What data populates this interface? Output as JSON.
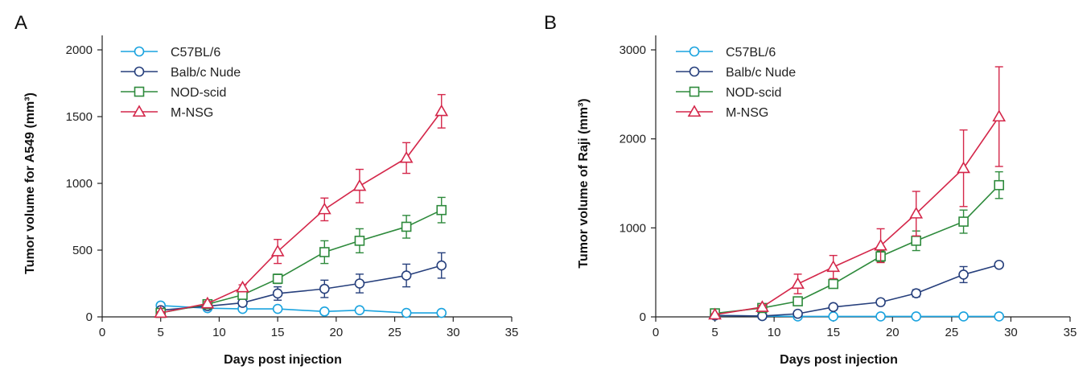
{
  "chart_data": [
    {
      "type": "line",
      "panel_label": "A",
      "xlabel": "Days post injection",
      "ylabel": "Tumor volume for A549 (mm³)",
      "xlim": [
        0,
        35
      ],
      "ylim": [
        0,
        2000
      ],
      "xticks": [
        0,
        5,
        10,
        15,
        20,
        25,
        30,
        35
      ],
      "yticks": [
        0,
        500,
        1000,
        1500,
        2000
      ],
      "grid": false,
      "legend_position": "top-left",
      "series": [
        {
          "name": "C57BL/6",
          "color": "#1aa3df",
          "marker": "circle",
          "x": [
            5,
            9,
            12,
            15,
            19,
            22,
            26,
            29
          ],
          "y": [
            85,
            65,
            60,
            60,
            40,
            50,
            30,
            30
          ],
          "err": [
            8,
            8,
            8,
            8,
            8,
            8,
            8,
            8
          ]
        },
        {
          "name": "Balb/c Nude",
          "color": "#263f7c",
          "marker": "circle",
          "x": [
            5,
            9,
            12,
            15,
            19,
            22,
            26,
            29
          ],
          "y": [
            50,
            80,
            105,
            175,
            210,
            250,
            310,
            385
          ],
          "err": [
            10,
            15,
            25,
            50,
            65,
            70,
            85,
            95
          ]
        },
        {
          "name": "NOD-scid",
          "color": "#2e8a3c",
          "marker": "square",
          "x": [
            5,
            9,
            12,
            15,
            19,
            22,
            26,
            29
          ],
          "y": [
            30,
            95,
            165,
            285,
            485,
            570,
            675,
            800
          ],
          "err": [
            8,
            15,
            25,
            35,
            85,
            90,
            85,
            95
          ]
        },
        {
          "name": "M-NSG",
          "color": "#d4274a",
          "marker": "triangle",
          "x": [
            5,
            9,
            12,
            15,
            19,
            22,
            26,
            29
          ],
          "y": [
            30,
            100,
            220,
            490,
            805,
            980,
            1190,
            1540
          ],
          "err": [
            8,
            15,
            20,
            90,
            85,
            125,
            115,
            125
          ]
        }
      ]
    },
    {
      "type": "line",
      "panel_label": "B",
      "xlabel": "Days post injection",
      "ylabel": "Tumor volume of Raji (mm³)",
      "xlim": [
        0,
        35
      ],
      "ylim": [
        0,
        3000
      ],
      "xticks": [
        0,
        5,
        10,
        15,
        20,
        25,
        30,
        35
      ],
      "yticks": [
        0,
        1000,
        2000,
        3000
      ],
      "grid": false,
      "legend_position": "top-left",
      "series": [
        {
          "name": "C57BL/6",
          "color": "#1aa3df",
          "marker": "circle",
          "x": [
            5,
            9,
            12,
            15,
            19,
            22,
            26,
            29
          ],
          "y": [
            15,
            10,
            5,
            5,
            5,
            5,
            5,
            5
          ],
          "err": [
            5,
            5,
            5,
            5,
            5,
            5,
            5,
            5
          ]
        },
        {
          "name": "Balb/c Nude",
          "color": "#263f7c",
          "marker": "circle",
          "x": [
            5,
            9,
            12,
            15,
            19,
            22,
            26,
            29
          ],
          "y": [
            15,
            10,
            35,
            110,
            165,
            265,
            475,
            585
          ],
          "err": [
            5,
            10,
            15,
            30,
            30,
            40,
            90,
            30
          ]
        },
        {
          "name": "NOD-scid",
          "color": "#2e8a3c",
          "marker": "square",
          "x": [
            5,
            9,
            12,
            15,
            19,
            22,
            26,
            29
          ],
          "y": [
            40,
            100,
            175,
            370,
            680,
            855,
            1070,
            1480
          ],
          "err": [
            10,
            15,
            30,
            40,
            60,
            110,
            130,
            150
          ]
        },
        {
          "name": "M-NSG",
          "color": "#d4274a",
          "marker": "triangle",
          "x": [
            5,
            9,
            12,
            15,
            19,
            22,
            26,
            29
          ],
          "y": [
            25,
            110,
            370,
            560,
            800,
            1160,
            1670,
            2250
          ],
          "err": [
            10,
            20,
            110,
            130,
            190,
            250,
            430,
            560
          ]
        }
      ]
    }
  ]
}
